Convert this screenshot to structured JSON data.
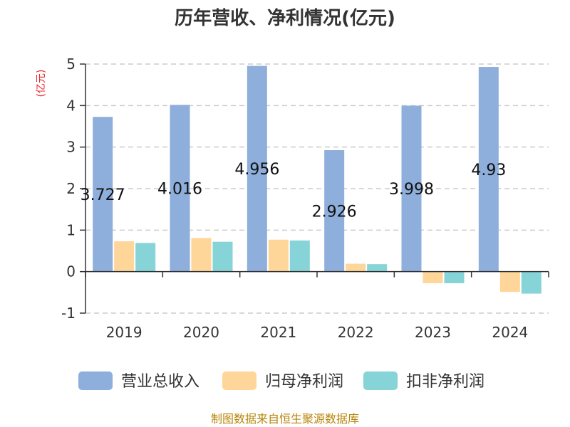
{
  "chart_data": {
    "type": "bar",
    "title": "历年营收、净利情况(亿元)",
    "unit_label": "(亿元)",
    "categories": [
      "2019",
      "2020",
      "2021",
      "2022",
      "2023",
      "2024"
    ],
    "series": [
      {
        "name": "营业总收入",
        "color": "#8eaedb",
        "values": [
          3.727,
          4.016,
          4.956,
          2.926,
          3.998,
          4.93
        ],
        "labels": [
          "3.727",
          "4.016",
          "4.956",
          "2.926",
          "3.998",
          "4.93"
        ]
      },
      {
        "name": "归母净利润",
        "color": "#ffd699",
        "values": [
          0.73,
          0.81,
          0.77,
          0.19,
          -0.28,
          -0.49
        ]
      },
      {
        "name": "扣非净利润",
        "color": "#86d4d8",
        "values": [
          0.69,
          0.72,
          0.75,
          0.18,
          -0.28,
          -0.53
        ]
      }
    ],
    "yticks": [
      "5",
      "4",
      "3",
      "2",
      "1",
      "0",
      "-1"
    ],
    "ylim": [
      -1,
      5
    ],
    "grid": true,
    "legend_position": "bottom"
  },
  "source": "制图数据来自恒生聚源数据库"
}
